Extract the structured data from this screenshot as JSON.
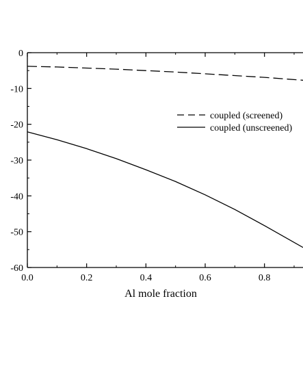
{
  "chart_data": {
    "type": "line",
    "xlabel": "Al mole fraction",
    "ylabel": "",
    "xlim": [
      0.0,
      0.93
    ],
    "ylim": [
      -60,
      0
    ],
    "x_ticks": [
      {
        "value": 0.0,
        "label": "0.0"
      },
      {
        "value": 0.2,
        "label": "0.2"
      },
      {
        "value": 0.4,
        "label": "0.4"
      },
      {
        "value": 0.6,
        "label": "0.6"
      },
      {
        "value": 0.8,
        "label": "0.8"
      }
    ],
    "y_ticks": [
      {
        "value": 0,
        "label": "0"
      },
      {
        "value": -10,
        "label": "-10"
      },
      {
        "value": -20,
        "label": "-20"
      },
      {
        "value": -30,
        "label": "-30"
      },
      {
        "value": -40,
        "label": "-40"
      },
      {
        "value": -50,
        "label": "-50"
      },
      {
        "value": -60,
        "label": "-60"
      }
    ],
    "legend_position": "upper-right",
    "grid": false,
    "series": [
      {
        "name": "coupled (screened)",
        "style": "dashed",
        "color": "#000000",
        "x": [
          0.0,
          0.1,
          0.2,
          0.3,
          0.4,
          0.5,
          0.6,
          0.7,
          0.8,
          0.93
        ],
        "y": [
          -3.8,
          -4.0,
          -4.3,
          -4.6,
          -5.0,
          -5.4,
          -5.9,
          -6.4,
          -6.9,
          -7.7
        ]
      },
      {
        "name": "coupled (unscreened)",
        "style": "solid",
        "color": "#000000",
        "x": [
          0.0,
          0.1,
          0.2,
          0.3,
          0.4,
          0.5,
          0.6,
          0.7,
          0.8,
          0.93
        ],
        "y": [
          -22.1,
          -24.3,
          -26.8,
          -29.6,
          -32.7,
          -36.0,
          -39.7,
          -43.8,
          -48.3,
          -54.4
        ]
      }
    ]
  }
}
